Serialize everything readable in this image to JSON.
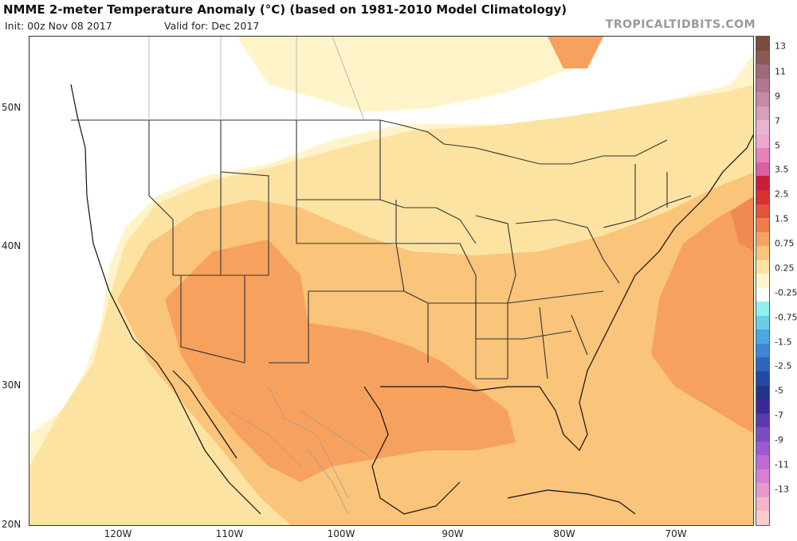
{
  "header": {
    "title": "NMME 2-meter Temperature Anomaly (°C) (based on 1981-2010 Model Climatology)",
    "init": "Init: 00z Nov 08 2017",
    "valid": "Valid for: Dec 2017",
    "site": "TROPICALTIDBITS.COM"
  },
  "axes": {
    "lat_labels": [
      "50N",
      "40N",
      "30N",
      "20N"
    ],
    "lon_labels": [
      "120W",
      "110W",
      "100W",
      "90W",
      "80W",
      "70W"
    ]
  },
  "colorbar": {
    "bins": [
      {
        "color": "#7a4b3a"
      },
      {
        "color": "#8a5a55"
      },
      {
        "color": "#a06a78"
      },
      {
        "color": "#b3788f"
      },
      {
        "color": "#c58aa6"
      },
      {
        "color": "#d89fbd"
      },
      {
        "color": "#e9b4d4"
      },
      {
        "color": "#f0a6d0"
      },
      {
        "color": "#e882b8"
      },
      {
        "color": "#dd5fa0"
      },
      {
        "color": "#c81e3c"
      },
      {
        "color": "#d73030"
      },
      {
        "color": "#e5523a"
      },
      {
        "color": "#ef7c4a"
      },
      {
        "color": "#f6a25e"
      },
      {
        "color": "#fac47a"
      },
      {
        "color": "#fde3a2"
      },
      {
        "color": "#fff6cf"
      },
      {
        "color": "#ffffff"
      },
      {
        "color": "#8ff0ee"
      },
      {
        "color": "#66cfe8"
      },
      {
        "color": "#4aa8e0"
      },
      {
        "color": "#3e86d4"
      },
      {
        "color": "#2f64c2"
      },
      {
        "color": "#2646a8"
      },
      {
        "color": "#23338a"
      },
      {
        "color": "#3a2a96"
      },
      {
        "color": "#5a3ab0"
      },
      {
        "color": "#7a4cc4"
      },
      {
        "color": "#9a5cd0"
      },
      {
        "color": "#bb6cd6"
      },
      {
        "color": "#d77fd3"
      },
      {
        "color": "#ea98cf"
      },
      {
        "color": "#f5b4c8"
      },
      {
        "color": "#f9cccc"
      }
    ],
    "labels": [
      "13",
      "11",
      "9",
      "7",
      "5",
      "3.5",
      "2.5",
      "1.5",
      "0.75",
      "0.25",
      "-0.25",
      "-0.75",
      "-1.5",
      "-2.5",
      "-5",
      "-7",
      "-9",
      "-11",
      "-13"
    ]
  },
  "map_colors": {
    "base": "#fff4c9",
    "light": "#fde3a2",
    "mid": "#fac47a",
    "warm": "#f6a25e",
    "hot": "#ef8a52",
    "land_outline": "#111111",
    "state_line": "#333333",
    "mexico_state_line": "#999999",
    "canada_line": "#aaaaaa"
  }
}
